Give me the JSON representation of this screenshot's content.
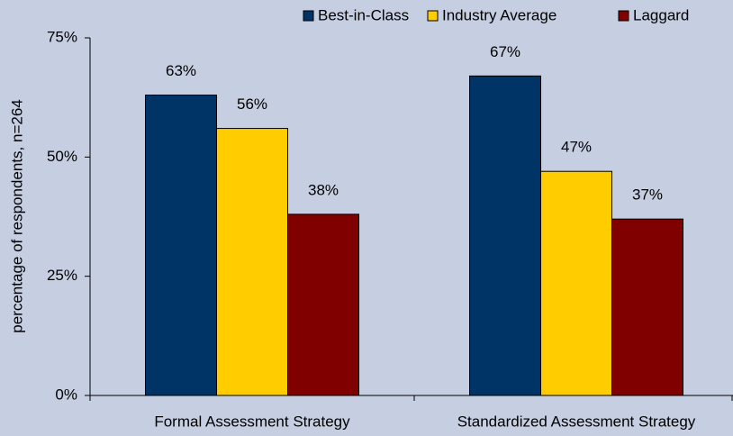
{
  "chart_data": {
    "type": "bar",
    "y_label": "percentage of respondents, n=264",
    "categories": [
      "Formal Assessment Strategy",
      "Standardized Assessment Strategy"
    ],
    "series": [
      {
        "name": "Best-in-Class",
        "color": "#003366",
        "values": [
          63,
          67
        ],
        "value_labels": [
          "63%",
          "67%"
        ]
      },
      {
        "name": "Industry Average",
        "color": "#ffcc00",
        "values": [
          56,
          47
        ],
        "value_labels": [
          "56%",
          "47%"
        ]
      },
      {
        "name": "Laggard",
        "color": "#800000",
        "values": [
          38,
          37
        ],
        "value_labels": [
          "38%",
          "37%"
        ]
      }
    ],
    "ylim": [
      0,
      75
    ],
    "yticks": [
      {
        "value": 0,
        "label": "0%"
      },
      {
        "value": 25,
        "label": "25%"
      },
      {
        "value": 50,
        "label": "50%"
      },
      {
        "value": 75,
        "label": "75%"
      }
    ],
    "grid": false
  }
}
